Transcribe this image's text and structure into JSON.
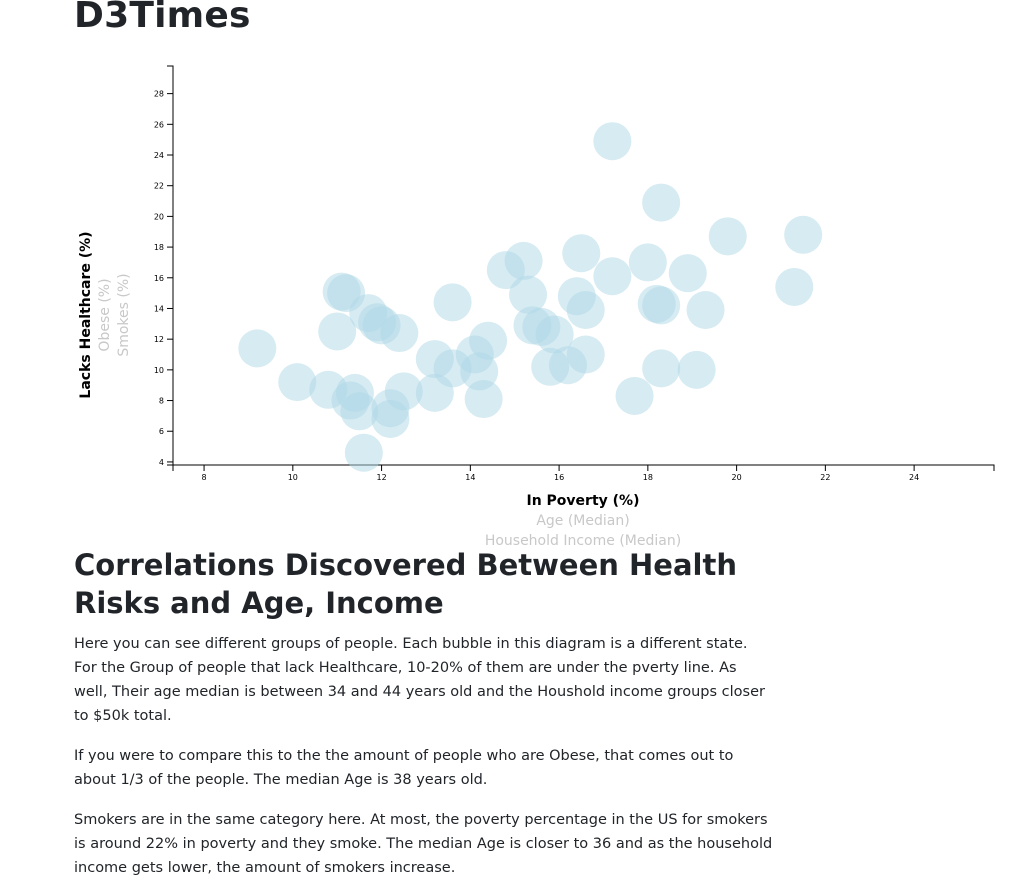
{
  "site": {
    "title": "D3Times"
  },
  "chart_data": {
    "type": "scatter",
    "x_axis": {
      "range": [
        7.3,
        25.8
      ],
      "ticks": [
        8,
        10,
        12,
        14,
        16,
        18,
        20,
        22,
        24
      ],
      "labels": [
        {
          "text": "In Poverty (%)",
          "active": true
        },
        {
          "text": "Age (Median)",
          "active": false
        },
        {
          "text": "Household Income (Median)",
          "active": false
        }
      ]
    },
    "y_axis": {
      "range": [
        3.8,
        29.8
      ],
      "ticks": [
        4,
        6,
        8,
        10,
        12,
        14,
        16,
        18,
        20,
        22,
        24,
        26,
        28
      ],
      "labels": [
        {
          "text": "Lacks Healthcare (%)",
          "active": true
        },
        {
          "text": "Obese (%)",
          "active": false
        },
        {
          "text": "Smokes (%)",
          "active": false
        }
      ]
    },
    "grid": false,
    "bubble_color": "#add8e6",
    "points": [
      {
        "x": 17.2,
        "y": 24.9
      },
      {
        "x": 18.3,
        "y": 20.9
      },
      {
        "x": 19.8,
        "y": 18.7
      },
      {
        "x": 21.5,
        "y": 18.8
      },
      {
        "x": 16.5,
        "y": 17.6
      },
      {
        "x": 15.2,
        "y": 17.1
      },
      {
        "x": 14.8,
        "y": 16.5
      },
      {
        "x": 17.2,
        "y": 16.1
      },
      {
        "x": 18.0,
        "y": 17.0
      },
      {
        "x": 18.9,
        "y": 16.3
      },
      {
        "x": 21.3,
        "y": 15.4
      },
      {
        "x": 11.2,
        "y": 15.0
      },
      {
        "x": 11.1,
        "y": 15.1
      },
      {
        "x": 13.6,
        "y": 14.4
      },
      {
        "x": 15.3,
        "y": 14.9
      },
      {
        "x": 16.4,
        "y": 14.8
      },
      {
        "x": 16.6,
        "y": 13.9
      },
      {
        "x": 18.2,
        "y": 14.3
      },
      {
        "x": 18.3,
        "y": 14.2
      },
      {
        "x": 19.3,
        "y": 13.9
      },
      {
        "x": 11.7,
        "y": 13.7
      },
      {
        "x": 12.0,
        "y": 12.9
      },
      {
        "x": 11.9,
        "y": 13.1
      },
      {
        "x": 12.4,
        "y": 12.4
      },
      {
        "x": 11.0,
        "y": 12.5
      },
      {
        "x": 15.4,
        "y": 12.9
      },
      {
        "x": 15.6,
        "y": 12.8
      },
      {
        "x": 15.9,
        "y": 12.3
      },
      {
        "x": 9.2,
        "y": 11.4
      },
      {
        "x": 14.4,
        "y": 11.9
      },
      {
        "x": 13.2,
        "y": 10.7
      },
      {
        "x": 13.6,
        "y": 10.1
      },
      {
        "x": 14.1,
        "y": 11.0
      },
      {
        "x": 14.2,
        "y": 9.9
      },
      {
        "x": 15.8,
        "y": 10.2
      },
      {
        "x": 16.2,
        "y": 10.3
      },
      {
        "x": 16.6,
        "y": 11.0
      },
      {
        "x": 18.3,
        "y": 10.1
      },
      {
        "x": 19.1,
        "y": 10.0
      },
      {
        "x": 10.1,
        "y": 9.2
      },
      {
        "x": 10.8,
        "y": 8.7
      },
      {
        "x": 11.4,
        "y": 8.5
      },
      {
        "x": 12.5,
        "y": 8.6
      },
      {
        "x": 13.2,
        "y": 8.5
      },
      {
        "x": 14.3,
        "y": 8.1
      },
      {
        "x": 17.7,
        "y": 8.3
      },
      {
        "x": 11.3,
        "y": 8.0
      },
      {
        "x": 11.5,
        "y": 7.3
      },
      {
        "x": 12.2,
        "y": 7.5
      },
      {
        "x": 12.2,
        "y": 6.8
      },
      {
        "x": 11.6,
        "y": 4.6
      }
    ]
  },
  "article": {
    "heading": "Correlations Discovered Between Health Risks and Age, Income",
    "paragraphs": [
      "Here you can see different groups of people. Each bubble in this diagram is a different state. For the Group of people that lack Healthcare, 10-20% of them are under the pverty line. As well, Their age median is between 34 and 44 years old and the Houshold income groups closer to $50k total.",
      "If you were to compare this to the the amount of people who are Obese, that comes out to about 1/3 of the people. The median Age is 38 years old.",
      "Smokers are in the same category here. At most, the poverty percentage in the US for smokers is around 22% in poverty and they smoke. The median Age is closer to 36 and as the household income gets lower, the amount of smokers increase."
    ]
  }
}
